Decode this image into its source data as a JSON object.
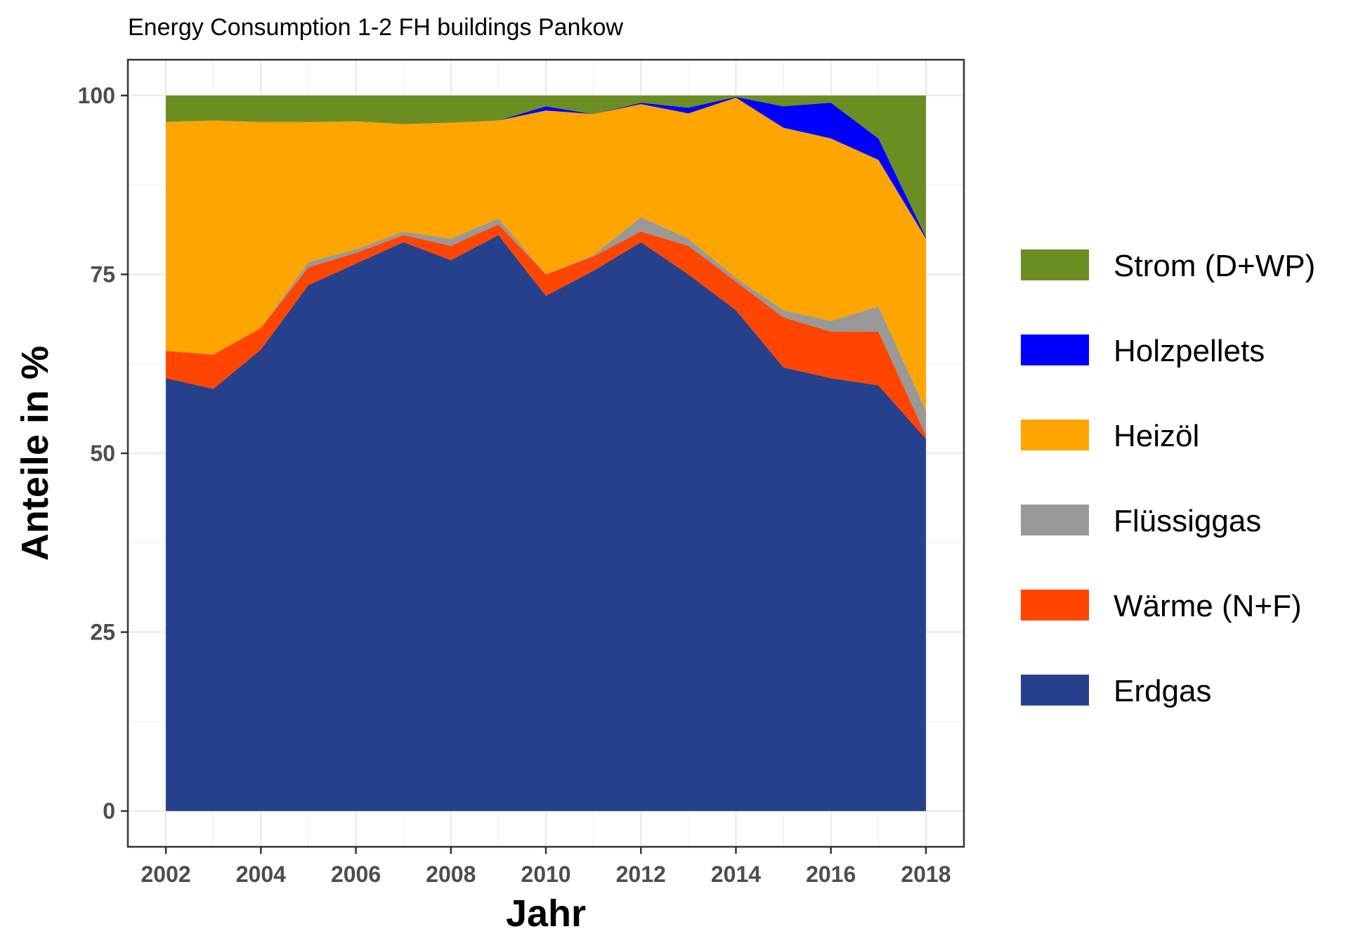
{
  "chart_data": {
    "type": "area",
    "title": "Energy Consumption 1-2 FH buildings Pankow",
    "xlabel": "Jahr",
    "ylabel": "Anteile in %",
    "xlim": [
      2001.2,
      2018.8
    ],
    "ylim": [
      -5,
      105
    ],
    "x_ticks": [
      2002,
      2004,
      2006,
      2008,
      2010,
      2012,
      2014,
      2016,
      2018
    ],
    "x_tick_labels": [
      "2002",
      "2004",
      "2006",
      "2008",
      "2010",
      "2012",
      "2014",
      "2016",
      "2018"
    ],
    "y_ticks": [
      0,
      25,
      50,
      75,
      100
    ],
    "y_tick_labels": [
      "0",
      "25",
      "50",
      "75",
      "100"
    ],
    "grid": true,
    "stacked": true,
    "legend_position": "right",
    "x": [
      2002,
      2003,
      2004,
      2005,
      2006,
      2007,
      2008,
      2009,
      2010,
      2011,
      2012,
      2013,
      2014,
      2015,
      2016,
      2017,
      2018
    ],
    "series": [
      {
        "name": "Erdgas",
        "color": "#27408B",
        "values": [
          60.5,
          59.0,
          64.5,
          73.5,
          76.5,
          79.5,
          77.0,
          80.5,
          72.0,
          75.5,
          79.5,
          75.0,
          70.0,
          62.0,
          60.5,
          59.5,
          52.0
        ]
      },
      {
        "name": "Wärme (N+F)",
        "color": "#FF4500",
        "values": [
          3.8,
          4.8,
          3.0,
          2.5,
          1.5,
          1.0,
          2.0,
          1.5,
          3.0,
          2.0,
          1.5,
          4.0,
          4.0,
          7.0,
          6.5,
          7.5,
          0.5
        ]
      },
      {
        "name": "Flüssiggas",
        "color": "#999999",
        "values": [
          0.0,
          0.0,
          0.0,
          0.7,
          0.5,
          0.5,
          1.0,
          0.8,
          0.0,
          0.2,
          2.0,
          1.0,
          0.5,
          1.0,
          1.5,
          3.5,
          3.5
        ]
      },
      {
        "name": "Heizöl",
        "color": "#FFA500",
        "values": [
          32.0,
          32.7,
          28.8,
          19.6,
          17.9,
          15.0,
          16.2,
          13.7,
          22.9,
          19.7,
          15.8,
          17.5,
          25.2,
          25.5,
          25.5,
          20.5,
          24.0
        ]
      },
      {
        "name": "Holzpellets",
        "color": "#0000FF",
        "values": [
          0.0,
          0.0,
          0.0,
          0.0,
          0.0,
          0.0,
          0.0,
          0.0,
          0.6,
          0.0,
          0.2,
          0.8,
          0.1,
          3.0,
          5.0,
          3.0,
          0.2
        ]
      },
      {
        "name": "Strom (D+WP)",
        "color": "#6B8E23",
        "values": [
          3.7,
          3.5,
          3.7,
          3.7,
          3.6,
          4.0,
          3.8,
          3.5,
          1.5,
          2.6,
          1.0,
          1.7,
          0.2,
          1.5,
          1.0,
          6.0,
          19.8
        ]
      }
    ],
    "legend_order": [
      "Strom (D+WP)",
      "Holzpellets",
      "Heizöl",
      "Flüssiggas",
      "Wärme (N+F)",
      "Erdgas"
    ]
  }
}
